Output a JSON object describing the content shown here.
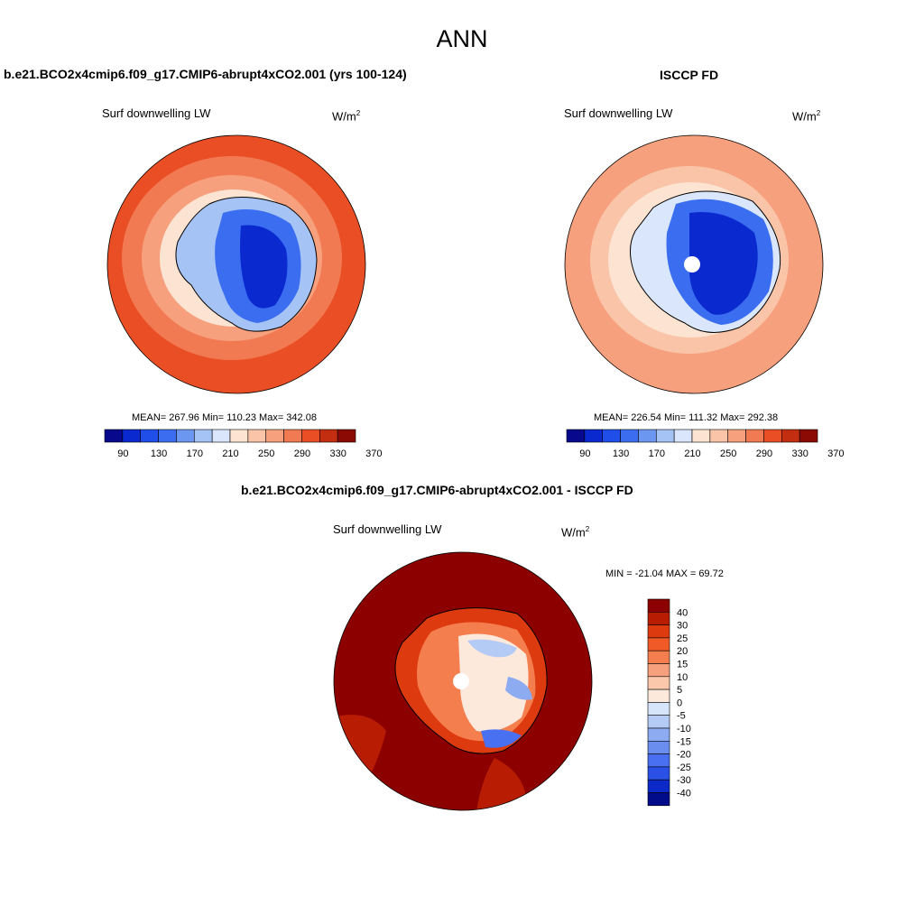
{
  "page_title": "ANN",
  "panels": [
    {
      "title": "b.e21.BCO2x4cmip6.f09_g17.CMIP6-abrupt4xCO2.001 (yrs 100-124)",
      "variable": "Surf downwelling LW",
      "units_base": "W/m",
      "units_exp": "2",
      "stats": "MEAN= 267.96  Min= 110.23  Max= 342.08"
    },
    {
      "title": "ISCCP FD",
      "variable": "Surf downwelling LW",
      "units_base": "W/m",
      "units_exp": "2",
      "stats": "MEAN= 226.54  Min= 111.32  Max= 292.38"
    },
    {
      "title": "b.e21.BCO2x4cmip6.f09_g17.CMIP6-abrupt4xCO2.001 - ISCCP FD",
      "variable": "Surf downwelling LW",
      "units_base": "W/m",
      "units_exp": "2",
      "stats": "MIN = -21.04 MAX =  69.72"
    }
  ],
  "colorbars": {
    "field": {
      "colors": [
        "#08088c",
        "#0a2ad0",
        "#1f4fe8",
        "#3a6df0",
        "#6b97f0",
        "#a6c3f5",
        "#d9e6fb",
        "#fde4d2",
        "#f9c4a8",
        "#f6a07e",
        "#f27a52",
        "#ea4e24",
        "#c42e10",
        "#8c0a04"
      ],
      "labels": [
        "90",
        "130",
        "170",
        "210",
        "250",
        "290",
        "330",
        "370"
      ]
    },
    "diff": {
      "colors": [
        "#8c0000",
        "#b81d04",
        "#de3a10",
        "#f05a26",
        "#f47e4e",
        "#f6a07e",
        "#fbc8ac",
        "#fde9dc",
        "#d7e5fa",
        "#b4cbf5",
        "#8cabf0",
        "#6a8ef0",
        "#4870f0",
        "#2a50e6",
        "#0c2ac8",
        "#000c8a"
      ],
      "labels": [
        "40",
        "30",
        "25",
        "20",
        "15",
        "10",
        "5",
        "0",
        "-5",
        "-10",
        "-15",
        "-20",
        "-25",
        "-30",
        "-40"
      ]
    }
  },
  "map_data": {
    "projection": "south polar stereographic",
    "region": "Antarctica"
  }
}
